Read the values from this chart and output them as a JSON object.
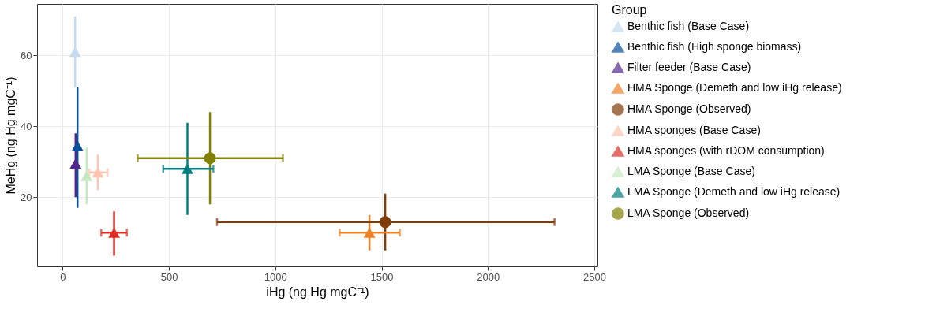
{
  "chart_data": {
    "type": "scatter",
    "xlabel": "iHg (ng Hg mgC⁻¹)",
    "ylabel": "MeHg (ng Hg mgC⁻¹)",
    "legend_title": "Group",
    "legend": "right",
    "grid": true,
    "xlim": [
      -120,
      2515
    ],
    "ylim": [
      0.5,
      74.5
    ],
    "xticks": [
      0,
      500,
      1000,
      1500,
      2000,
      2500
    ],
    "yticks": [
      20,
      40,
      60
    ],
    "series": [
      {
        "name": "Benthic fish (Base Case)",
        "color": "#c6dbef",
        "marker": "triangle",
        "x": [
          59
        ],
        "values": [
          61
        ],
        "errors": [
          [
            51,
            71
          ]
        ],
        "xerrors": [
          null
        ]
      },
      {
        "name": "Benthic fish (High sponge biomass)",
        "color": "#08519c",
        "marker": "triangle",
        "x": [
          70
        ],
        "values": [
          34.5
        ],
        "errors": [
          [
            17,
            51
          ]
        ],
        "xerrors": [
          null
        ]
      },
      {
        "name": "Filter feeder (Base Case)",
        "color": "#54278f",
        "marker": "triangle",
        "x": [
          61
        ],
        "values": [
          29.5
        ],
        "errors": [
          [
            20,
            38
          ]
        ],
        "xerrors": [
          null
        ]
      },
      {
        "name": "HMA Sponge (Demeth and low iHg release)",
        "color": "#ec8125",
        "marker": "triangle",
        "x": [
          1443
        ],
        "values": [
          10
        ],
        "errors": [
          [
            5,
            15
          ]
        ],
        "xerrors": [
          [
            1303,
            1586
          ]
        ]
      },
      {
        "name": "HMA Sponge (Observed)",
        "color": "#7f3b08",
        "marker": "circle",
        "x": [
          1517
        ],
        "values": [
          13
        ],
        "errors": [
          [
            5,
            21
          ]
        ],
        "xerrors": [
          [
            726,
            2313
          ]
        ]
      },
      {
        "name": "HMA sponges (Base Case)",
        "color": "#fcc5b0",
        "marker": "triangle",
        "x": [
          166
        ],
        "values": [
          27
        ],
        "errors": [
          [
            22,
            32
          ]
        ],
        "xerrors": [
          [
            125,
            212
          ]
        ]
      },
      {
        "name": "HMA sponges (with rDOM consumption)",
        "color": "#de2d26",
        "marker": "triangle",
        "x": [
          242
        ],
        "values": [
          10
        ],
        "errors": [
          [
            3.5,
            16
          ]
        ],
        "xerrors": [
          [
            182,
            302
          ]
        ]
      },
      {
        "name": "LMA Sponge (Base Case)",
        "color": "#c7e9c0",
        "marker": "triangle",
        "x": [
          113
        ],
        "values": [
          26
        ],
        "errors": [
          [
            18,
            34
          ]
        ],
        "xerrors": [
          null
        ]
      },
      {
        "name": "LMA Sponge (Demeth and low iHg release)",
        "color": "#008080",
        "marker": "triangle",
        "x": [
          587
        ],
        "values": [
          28
        ],
        "errors": [
          [
            15,
            41
          ]
        ],
        "xerrors": [
          [
            473,
            709
          ]
        ]
      },
      {
        "name": "LMA Sponge (Observed)",
        "color": "#808000",
        "marker": "circle",
        "x": [
          693
        ],
        "values": [
          31
        ],
        "errors": [
          [
            18,
            44
          ]
        ],
        "xerrors": [
          [
            353,
            1036
          ]
        ]
      }
    ]
  }
}
